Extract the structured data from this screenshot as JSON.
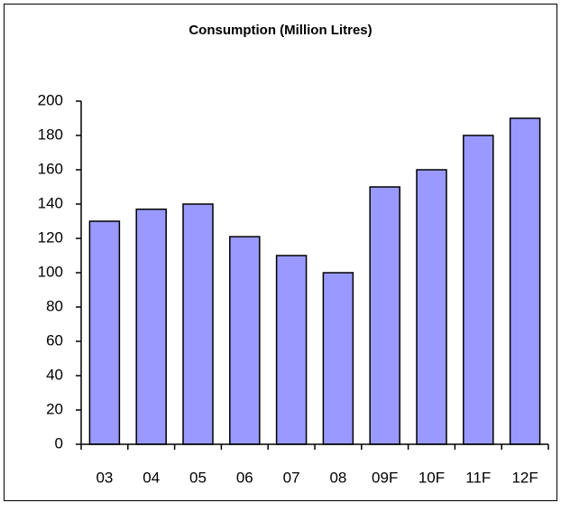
{
  "chart_data": {
    "type": "bar",
    "title": "Consumption (Million Litres)",
    "categories": [
      "03",
      "04",
      "05",
      "06",
      "07",
      "08",
      "09F",
      "10F",
      "11F",
      "12F"
    ],
    "values": [
      130,
      137,
      140,
      121,
      110,
      100,
      150,
      160,
      180,
      190
    ],
    "color": "#9999ff",
    "ylim": [
      0,
      200
    ],
    "yticks": [
      0,
      20,
      40,
      60,
      80,
      100,
      120,
      140,
      160,
      180,
      200
    ],
    "grid": false
  }
}
